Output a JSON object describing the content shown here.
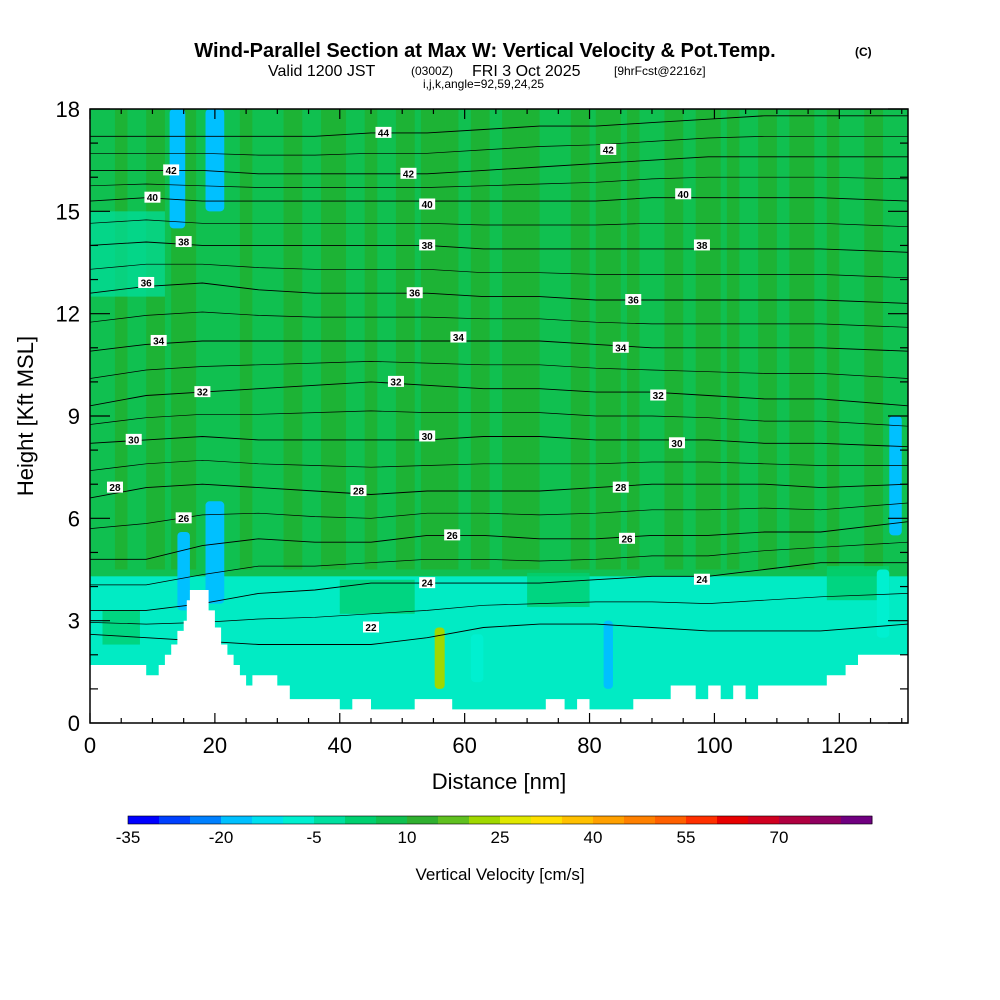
{
  "title": {
    "main": "Wind-Parallel Section at Max W: Vertical Velocity & Pot.Temp.",
    "copyright": "(C)",
    "valid_prefix": "Valid 1200 JST",
    "valid_utc": "(0300Z)",
    "valid_date": "FRI 3 Oct 2025",
    "fcst": "[9hrFcst@2216z]",
    "indices": "i,j,k,angle=92,59,24,25"
  },
  "chart_data": {
    "type": "heatmap",
    "xlabel": "Distance [nm]",
    "ylabel": "Height [Kft MSL]",
    "xlim": [
      0,
      131
    ],
    "ylim": [
      0,
      18
    ],
    "x_ticks": [
      "0",
      "20",
      "40",
      "60",
      "80",
      "100",
      "120"
    ],
    "y_ticks": [
      "0",
      "3",
      "6",
      "9",
      "12",
      "15",
      "18"
    ],
    "colorbar": {
      "label": "Vertical Velocity [cm/s]",
      "tick_labels": [
        "-35",
        "-20",
        "-5",
        "10",
        "25",
        "40",
        "55",
        "70"
      ],
      "colors": [
        "#0000ff",
        "#0040ff",
        "#0080ff",
        "#00c0ff",
        "#00e0f0",
        "#00f0d0",
        "#00e0a0",
        "#00d070",
        "#10c050",
        "#30b030",
        "#60c020",
        "#a0d800",
        "#e0e800",
        "#ffe000",
        "#ffc000",
        "#ffa000",
        "#ff8000",
        "#ff6000",
        "#ff3000",
        "#e80000",
        "#d00020",
        "#b00040",
        "#900060",
        "#700080"
      ]
    },
    "terrain": [
      [
        0,
        1.7
      ],
      [
        5,
        1.7
      ],
      [
        9,
        1.7
      ],
      [
        9,
        1.4
      ],
      [
        11,
        1.4
      ],
      [
        11,
        1.7
      ],
      [
        12,
        1.7
      ],
      [
        12,
        2
      ],
      [
        13,
        2
      ],
      [
        13,
        2.3
      ],
      [
        14,
        2.3
      ],
      [
        14,
        2.7
      ],
      [
        15,
        2.7
      ],
      [
        15,
        3
      ],
      [
        15.5,
        3
      ],
      [
        15.5,
        3.6
      ],
      [
        16,
        3.6
      ],
      [
        16,
        3.9
      ],
      [
        19,
        3.9
      ],
      [
        19,
        3.3
      ],
      [
        20,
        3.3
      ],
      [
        20,
        2.8
      ],
      [
        21,
        2.8
      ],
      [
        21,
        2.3
      ],
      [
        22,
        2.3
      ],
      [
        22,
        2
      ],
      [
        23,
        2
      ],
      [
        23,
        1.7
      ],
      [
        24,
        1.7
      ],
      [
        24,
        1.4
      ],
      [
        25,
        1.4
      ],
      [
        25,
        1.1
      ],
      [
        26,
        1.1
      ],
      [
        26,
        1.4
      ],
      [
        30,
        1.4
      ],
      [
        30,
        1.1
      ],
      [
        32,
        1.1
      ],
      [
        32,
        0.7
      ],
      [
        40,
        0.7
      ],
      [
        40,
        0.4
      ],
      [
        42,
        0.4
      ],
      [
        42,
        0.7
      ],
      [
        45,
        0.7
      ],
      [
        45,
        0.4
      ],
      [
        52,
        0.4
      ],
      [
        52,
        0.7
      ],
      [
        58,
        0.7
      ],
      [
        58,
        0.4
      ],
      [
        73,
        0.4
      ],
      [
        73,
        0.7
      ],
      [
        76,
        0.7
      ],
      [
        76,
        0.4
      ],
      [
        78,
        0.4
      ],
      [
        78,
        0.7
      ],
      [
        80,
        0.7
      ],
      [
        80,
        0.4
      ],
      [
        87,
        0.4
      ],
      [
        87,
        0.7
      ],
      [
        93,
        0.7
      ],
      [
        93,
        1.1
      ],
      [
        97,
        1.1
      ],
      [
        97,
        0.7
      ],
      [
        99,
        0.7
      ],
      [
        99,
        1.1
      ],
      [
        101,
        1.1
      ],
      [
        101,
        0.7
      ],
      [
        103,
        0.7
      ],
      [
        103,
        1.1
      ],
      [
        105,
        1.1
      ],
      [
        105,
        0.7
      ],
      [
        107,
        0.7
      ],
      [
        107,
        1.1
      ],
      [
        118,
        1.1
      ],
      [
        118,
        1.4
      ],
      [
        121,
        1.4
      ],
      [
        121,
        1.7
      ],
      [
        123,
        1.7
      ],
      [
        123,
        2
      ],
      [
        131,
        2
      ]
    ],
    "potential_temperature_contours": [
      {
        "label": "22",
        "y": [
          2.6,
          2.5,
          2.4,
          2.3,
          2.3,
          2.3,
          2.5,
          2.8,
          2.9,
          2.9,
          2.8,
          2.7,
          2.7,
          2.7,
          2.9
        ]
      },
      {
        "label": "24",
        "y": [
          3.3,
          3.3,
          3.5,
          3.8,
          3.9,
          4.1,
          4.1,
          4.1,
          4.1,
          4.2,
          4.3,
          4.3,
          4.5,
          4.7,
          4.7
        ]
      },
      {
        "label": "26",
        "y": [
          4.8,
          4.8,
          5.2,
          5.4,
          5.3,
          5.3,
          5.5,
          5.5,
          5.4,
          5.4,
          5.5,
          5.5,
          5.6,
          5.6,
          5.9
        ]
      },
      {
        "label": "28",
        "y": [
          6.6,
          6.9,
          7.0,
          6.9,
          6.8,
          6.7,
          6.8,
          6.8,
          6.8,
          6.9,
          7.0,
          7.0,
          7.0,
          6.9,
          7.0
        ]
      },
      {
        "label": "30",
        "y": [
          8.2,
          8.3,
          8.4,
          8.3,
          8.3,
          8.3,
          8.3,
          8.4,
          8.4,
          8.3,
          8.3,
          8.3,
          8.2,
          8.2,
          8.1
        ]
      },
      {
        "label": "32",
        "y": [
          9.3,
          9.6,
          9.7,
          9.8,
          9.9,
          10.0,
          9.9,
          9.8,
          9.8,
          9.7,
          9.7,
          9.6,
          9.5,
          9.5,
          9.3
        ]
      },
      {
        "label": "34",
        "y": [
          10.9,
          11.1,
          11.2,
          11.2,
          11.2,
          11.2,
          11.2,
          11.2,
          11.2,
          11.1,
          11.0,
          11.0,
          11.0,
          11.0,
          10.9
        ]
      },
      {
        "label": "36",
        "y": [
          12.6,
          12.8,
          12.9,
          12.7,
          12.6,
          12.6,
          12.6,
          12.5,
          12.5,
          12.4,
          12.4,
          12.4,
          12.4,
          12.4,
          12.3
        ]
      },
      {
        "label": "38",
        "y": [
          14.0,
          14.1,
          14.0,
          14.0,
          14.0,
          14.0,
          14.0,
          13.9,
          13.9,
          13.9,
          13.9,
          13.9,
          13.9,
          13.9,
          13.8
        ]
      },
      {
        "label": "40",
        "y": [
          15.3,
          15.4,
          15.3,
          15.3,
          15.3,
          15.3,
          15.3,
          15.3,
          15.3,
          15.3,
          15.4,
          15.4,
          15.4,
          15.4,
          15.3
        ]
      },
      {
        "label": "42",
        "y": [
          16.2,
          16.2,
          16.2,
          16.1,
          16.1,
          16.1,
          16.1,
          16.2,
          16.3,
          16.4,
          16.5,
          16.6,
          16.6,
          16.6,
          16.6
        ]
      },
      {
        "label": "44",
        "y": [
          17.2,
          17.2,
          17.2,
          17.2,
          17.2,
          17.3,
          17.3,
          17.4,
          17.5,
          17.5,
          17.6,
          17.7,
          17.8,
          17.8,
          17.8
        ]
      }
    ],
    "contour_x": [
      0,
      9,
      18,
      27,
      36,
      45,
      54,
      63,
      72,
      81,
      90,
      99,
      108,
      117,
      131
    ],
    "contour_label_positions": [
      {
        "label": "22",
        "x": 45,
        "y": 2.8
      },
      {
        "label": "24",
        "x": 54,
        "y": 4.1
      },
      {
        "label": "24",
        "x": 98,
        "y": 4.2
      },
      {
        "label": "26",
        "x": 15,
        "y": 6.0
      },
      {
        "label": "26",
        "x": 58,
        "y": 5.5
      },
      {
        "label": "26",
        "x": 86,
        "y": 5.4
      },
      {
        "label": "28",
        "x": 4,
        "y": 6.9
      },
      {
        "label": "28",
        "x": 43,
        "y": 6.8
      },
      {
        "label": "28",
        "x": 85,
        "y": 6.9
      },
      {
        "label": "30",
        "x": 7,
        "y": 8.3
      },
      {
        "label": "30",
        "x": 54,
        "y": 8.4
      },
      {
        "label": "30",
        "x": 94,
        "y": 8.2
      },
      {
        "label": "32",
        "x": 18,
        "y": 9.7
      },
      {
        "label": "32",
        "x": 49,
        "y": 10.0
      },
      {
        "label": "32",
        "x": 91,
        "y": 9.6
      },
      {
        "label": "34",
        "x": 11,
        "y": 11.2
      },
      {
        "label": "34",
        "x": 59,
        "y": 11.3
      },
      {
        "label": "34",
        "x": 85,
        "y": 11.0
      },
      {
        "label": "36",
        "x": 9,
        "y": 12.9
      },
      {
        "label": "36",
        "x": 52,
        "y": 12.6
      },
      {
        "label": "36",
        "x": 87,
        "y": 12.4
      },
      {
        "label": "38",
        "x": 15,
        "y": 14.1
      },
      {
        "label": "38",
        "x": 54,
        "y": 14.0
      },
      {
        "label": "38",
        "x": 98,
        "y": 14.0
      },
      {
        "label": "40",
        "x": 10,
        "y": 15.4
      },
      {
        "label": "40",
        "x": 54,
        "y": 15.2
      },
      {
        "label": "40",
        "x": 95,
        "y": 15.5
      },
      {
        "label": "42",
        "x": 13,
        "y": 16.2
      },
      {
        "label": "42",
        "x": 51,
        "y": 16.1
      },
      {
        "label": "42",
        "x": 83,
        "y": 16.8
      },
      {
        "label": "44",
        "x": 47,
        "y": 17.3
      }
    ],
    "velocity_features": [
      {
        "x": 14,
        "y0": 14.5,
        "y1": 18,
        "w": 2.5,
        "level": "-20"
      },
      {
        "x": 20,
        "y0": 15,
        "y1": 18,
        "w": 3,
        "level": "-20"
      },
      {
        "x": 20,
        "y0": 3.5,
        "y1": 6.5,
        "w": 3,
        "level": "-20"
      },
      {
        "x": 15,
        "y0": 3.3,
        "y1": 5.6,
        "w": 2,
        "level": "-20"
      },
      {
        "x": 56,
        "y0": 1.0,
        "y1": 2.8,
        "w": 1.6,
        "level": "25"
      },
      {
        "x": 62,
        "y0": 1.2,
        "y1": 2.6,
        "w": 2,
        "level": "-5"
      },
      {
        "x": 83,
        "y0": 1.0,
        "y1": 3.0,
        "w": 1.5,
        "level": "-20"
      },
      {
        "x": 129,
        "y0": 5.5,
        "y1": 9,
        "w": 2,
        "level": "-20"
      },
      {
        "x": 127,
        "y0": 2.5,
        "y1": 4.5,
        "w": 2,
        "level": "-5"
      }
    ]
  }
}
